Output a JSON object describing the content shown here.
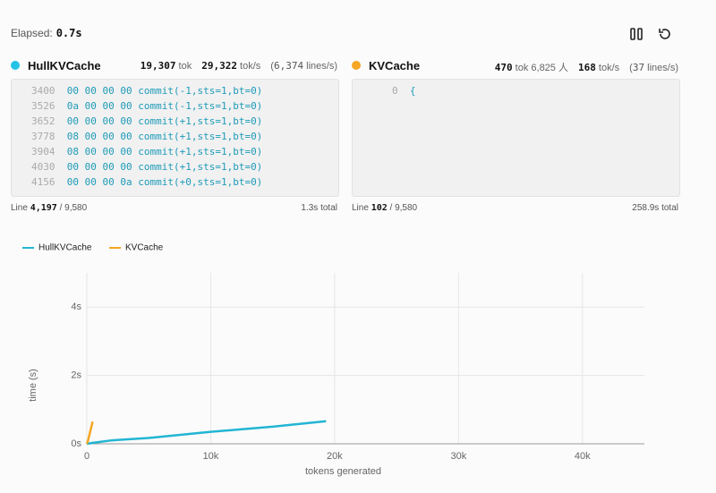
{
  "header": {
    "elapsed_label": "Elapsed:",
    "elapsed_value": "0.7s"
  },
  "panels": [
    {
      "name": "HullKVCache",
      "color": "#22c3e6",
      "tokens": "19,307",
      "tokens_unit": "tok",
      "rate": "29,322",
      "rate_unit": "tok/s",
      "lines_rate": "6,374",
      "lines_unit": "lines/s",
      "lines": [
        {
          "num": "3400",
          "hex": "00 00 00 00",
          "code": "commit(-1,sts=1,bt=0)"
        },
        {
          "num": "3526",
          "hex": "0a 00 00 00",
          "code": "commit(-1,sts=1,bt=0)"
        },
        {
          "num": "3652",
          "hex": "00 00 00 00",
          "code": "commit(+1,sts=1,bt=0)"
        },
        {
          "num": "3778",
          "hex": "08 00 00 00",
          "code": "commit(+1,sts=1,bt=0)"
        },
        {
          "num": "3904",
          "hex": "08 00 00 00",
          "code": "commit(+1,sts=1,bt=0)"
        },
        {
          "num": "4030",
          "hex": "00 00 00 00",
          "code": "commit(+1,sts=1,bt=0)"
        },
        {
          "num": "4156",
          "hex": "00 00 00 0a",
          "code": "commit(+0,sts=1,bt=0)"
        }
      ],
      "line_label": "Line",
      "line_current": "4,197",
      "line_total": "9,580",
      "total_time": "1.3s total"
    },
    {
      "name": "KVCache",
      "color": "#f5a623",
      "tokens": "470",
      "tokens_unit": "tok",
      "extra": "6,825 人",
      "rate": "168",
      "rate_unit": "tok/s",
      "lines_rate": "37",
      "lines_unit": "lines/s",
      "lines": [
        {
          "num": "0",
          "code": "{"
        }
      ],
      "line_label": "Line",
      "line_current": "102",
      "line_total": "9,580",
      "total_time": "258.9s total"
    }
  ],
  "chart_data": {
    "type": "line",
    "x_label": "tokens generated",
    "y_label": "time (s)",
    "xlim": [
      0,
      45000
    ],
    "xticks": [
      {
        "value": 0,
        "label": "0"
      },
      {
        "value": 10000,
        "label": "10k"
      },
      {
        "value": 20000,
        "label": "20k"
      },
      {
        "value": 30000,
        "label": "30k"
      },
      {
        "value": 40000,
        "label": "40k"
      }
    ],
    "ylim": [
      0,
      5
    ],
    "yticks": [
      {
        "value": 0,
        "label": "0s"
      },
      {
        "value": 2,
        "label": "2s"
      },
      {
        "value": 4,
        "label": "4s"
      }
    ],
    "grid": true,
    "series": [
      {
        "name": "HullKVCache",
        "color": "#22b5d3",
        "x": [
          0,
          500,
          2000,
          5000,
          10000,
          15000,
          19307
        ],
        "y": [
          0,
          0.03,
          0.1,
          0.17,
          0.35,
          0.5,
          0.66
        ]
      },
      {
        "name": "KVCache",
        "color": "#f5a623",
        "x": [
          0,
          100,
          470
        ],
        "y": [
          0,
          0.1,
          0.65
        ]
      }
    ]
  }
}
